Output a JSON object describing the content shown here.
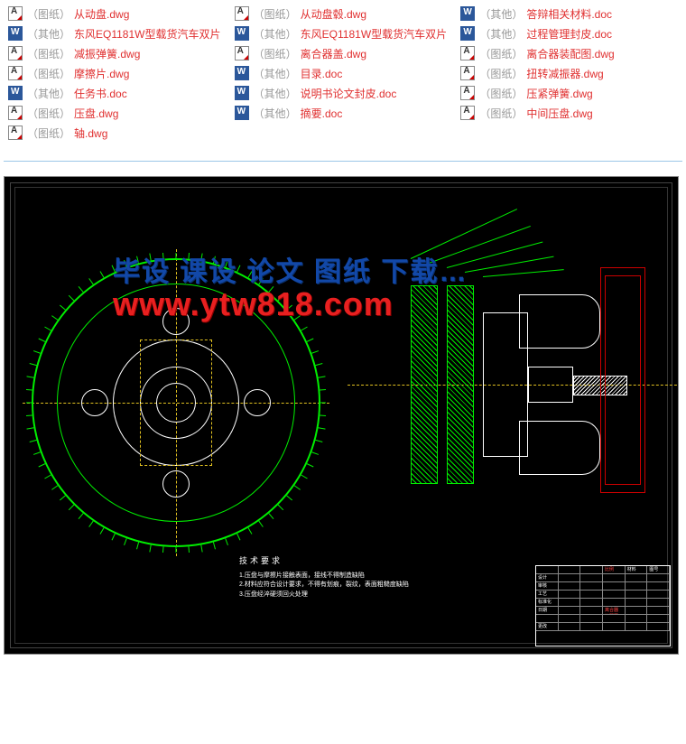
{
  "files": [
    {
      "icon": "dwg",
      "cat": "（图纸）",
      "name": "从动盘.dwg"
    },
    {
      "icon": "dwg",
      "cat": "（图纸）",
      "name": "从动盘毂.dwg"
    },
    {
      "icon": "doc",
      "cat": "（其他）",
      "name": "答辩相关材料.doc"
    },
    {
      "icon": "doc",
      "cat": "（其他）",
      "name": "东风EQ1181W型载货汽车双片"
    },
    {
      "icon": "doc",
      "cat": "（其他）",
      "name": "东风EQ1181W型载货汽车双片"
    },
    {
      "icon": "doc",
      "cat": "（其他）",
      "name": "过程管理封皮.doc"
    },
    {
      "icon": "dwg",
      "cat": "（图纸）",
      "name": "减振弹簧.dwg"
    },
    {
      "icon": "dwg",
      "cat": "（图纸）",
      "name": "离合器盖.dwg"
    },
    {
      "icon": "dwg",
      "cat": "（图纸）",
      "name": "离合器装配图.dwg"
    },
    {
      "icon": "dwg",
      "cat": "（图纸）",
      "name": "摩擦片.dwg"
    },
    {
      "icon": "doc",
      "cat": "（其他）",
      "name": "目录.doc"
    },
    {
      "icon": "dwg",
      "cat": "（图纸）",
      "name": "扭转减振器.dwg"
    },
    {
      "icon": "doc",
      "cat": "（其他）",
      "name": "任务书.doc"
    },
    {
      "icon": "doc",
      "cat": "（其他）",
      "name": "说明书论文封皮.doc"
    },
    {
      "icon": "dwg",
      "cat": "（图纸）",
      "name": "压紧弹簧.dwg"
    },
    {
      "icon": "dwg",
      "cat": "（图纸）",
      "name": "压盘.dwg"
    },
    {
      "icon": "doc",
      "cat": "（其他）",
      "name": "摘要.doc"
    },
    {
      "icon": "dwg",
      "cat": "（图纸）",
      "name": "中间压盘.dwg"
    },
    {
      "icon": "dwg",
      "cat": "（图纸）",
      "name": "轴.dwg"
    }
  ],
  "watermark": {
    "line1": "毕设 课设 论文 图纸 下载…",
    "line2": "www.ytw818.com"
  },
  "cad": {
    "notes_title": "技术要求",
    "notes_lines": [
      "1.压盘与摩擦片接触表面，接线不得制造缺陷",
      "2.材料应符合设计要求，不得有划痕，裂纹，表面粗糙度缺陷",
      "3.压盘经淬硬须回火处理"
    ],
    "title_block": {
      "rows": [
        [
          "",
          "",
          "",
          "比例",
          "材料",
          "图号"
        ],
        [
          "设计",
          "",
          "",
          "",
          "",
          ""
        ],
        [
          "审核",
          "",
          "",
          "",
          "",
          ""
        ],
        [
          "工艺",
          "",
          "",
          "",
          "",
          ""
        ],
        [
          "标准化",
          "",
          "",
          "",
          "",
          ""
        ],
        [
          "日期",
          "",
          "",
          "离合器装配图",
          "",
          ""
        ],
        [
          "",
          "",
          "",
          "",
          "",
          ""
        ],
        [
          "更改",
          "",
          "",
          "",
          "",
          ""
        ]
      ]
    }
  }
}
